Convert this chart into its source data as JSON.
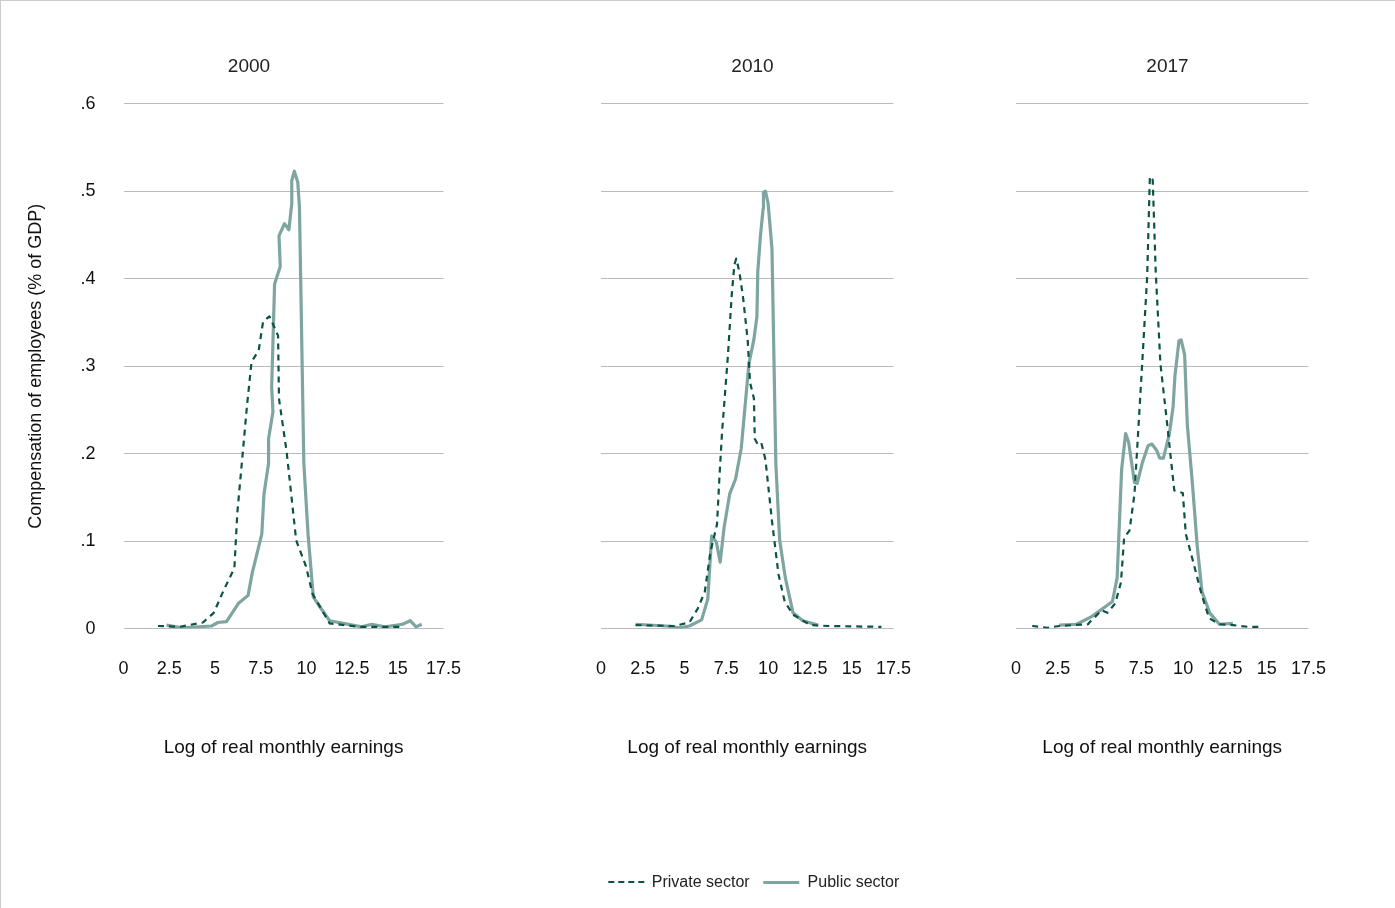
{
  "chart_data": [
    {
      "type": "line",
      "title": "2000",
      "xlabel": "Log of real monthly earnings",
      "ylabel": "Compensation of employees (% of GDP)",
      "xlim": [
        0,
        17.5
      ],
      "xticks": [
        0,
        2.5,
        5,
        7.5,
        10,
        12.5,
        15,
        17.5
      ],
      "ylim": [
        0,
        0.6
      ],
      "yticks": [
        {
          "value": 0,
          "label": "0"
        },
        {
          "value": 0.1,
          "label": ".1"
        },
        {
          "value": 0.2,
          "label": ".2"
        },
        {
          "value": 0.3,
          "label": ".3"
        },
        {
          "value": 0.4,
          "label": ".4"
        },
        {
          "value": 0.5,
          "label": ".5"
        },
        {
          "value": 0.6,
          "label": ".6"
        }
      ],
      "grid": "y",
      "marker": "none",
      "series": [
        {
          "color": "#0b5345",
          "line_style": "dashed",
          "x": [
            1.88,
            3.05,
            4.34,
            4.93,
            5.5,
            6.06,
            6.22,
            6.76,
            7.0,
            7.39,
            7.63,
            7.98,
            8.45,
            8.5,
            8.92,
            9.44,
            9.98,
            10.33,
            11.27,
            12.9,
            15.26
          ],
          "values": [
            0.003,
            0.002,
            0.007,
            0.018,
            0.045,
            0.069,
            0.132,
            0.257,
            0.305,
            0.318,
            0.351,
            0.357,
            0.335,
            0.263,
            0.202,
            0.101,
            0.071,
            0.04,
            0.006,
            0.002,
            0.002
          ]
        },
        {
          "color": "#7fa5a0",
          "line_style": "solid",
          "x": [
            2.35,
            3.17,
            4.81,
            5.16,
            5.63,
            6.29,
            6.81,
            7.04,
            7.56,
            7.68,
            7.93,
            7.93,
            8.17,
            8.1,
            8.26,
            8.57,
            8.5,
            8.8,
            9.04,
            9.2,
            9.2,
            9.34,
            9.53,
            9.62,
            9.86,
            10.09,
            10.38,
            10.8,
            11.27,
            13.03,
            13.57,
            14.3,
            15.26,
            15.68,
            16.0,
            16.31
          ],
          "values": [
            0.004,
            0.001,
            0.003,
            0.007,
            0.008,
            0.029,
            0.038,
            0.064,
            0.108,
            0.154,
            0.189,
            0.217,
            0.248,
            0.276,
            0.394,
            0.414,
            0.449,
            0.463,
            0.456,
            0.486,
            0.512,
            0.523,
            0.51,
            0.482,
            0.189,
            0.108,
            0.036,
            0.023,
            0.009,
            0.002,
            0.005,
            0.002,
            0.005,
            0.009,
            0.002,
            0.005
          ]
        }
      ]
    },
    {
      "type": "line",
      "title": "2010",
      "xlabel": "Log of real monthly earnings",
      "xlim": [
        0,
        17.5
      ],
      "xticks": [
        0,
        2.5,
        5,
        7.5,
        10,
        12.5,
        15,
        17.5
      ],
      "ylim": [
        0,
        0.6
      ],
      "yticks": [
        0,
        0.1,
        0.2,
        0.3,
        0.4,
        0.5,
        0.6
      ],
      "tick_labels": "x",
      "grid": "y",
      "marker": "none",
      "legend": "bottom",
      "series": [
        {
          "name": "Private sector",
          "color": "#0b5345",
          "line_style": "dashed",
          "x": [
            2.07,
            4.37,
            5.29,
            5.79,
            6.21,
            6.55,
            6.94,
            7.08,
            7.24,
            7.59,
            7.82,
            7.98,
            8.09,
            8.28,
            8.51,
            8.78,
            8.92,
            9.15,
            9.2,
            9.43,
            9.61,
            9.84,
            10.23,
            10.62,
            10.99,
            11.49,
            12.53,
            13.56,
            16.78
          ],
          "values": [
            0.004,
            0.003,
            0.007,
            0.023,
            0.042,
            0.088,
            0.119,
            0.171,
            0.224,
            0.311,
            0.381,
            0.416,
            0.423,
            0.408,
            0.377,
            0.329,
            0.281,
            0.263,
            0.217,
            0.209,
            0.211,
            0.193,
            0.123,
            0.062,
            0.031,
            0.016,
            0.004,
            0.003,
            0.002
          ]
        },
        {
          "name": "Public sector",
          "color": "#7fa5a0",
          "line_style": "solid",
          "x": [
            2.07,
            3.91,
            4.71,
            5.29,
            6.02,
            6.39,
            6.62,
            6.9,
            7.13,
            7.36,
            7.7,
            8.05,
            8.39,
            8.85,
            9.15,
            9.33,
            9.38,
            9.54,
            9.7,
            9.72,
            9.84,
            10.0,
            10.23,
            10.46,
            10.69,
            11.03,
            11.49,
            12.07,
            12.99
          ],
          "values": [
            0.005,
            0.003,
            0.001,
            0.003,
            0.01,
            0.034,
            0.106,
            0.099,
            0.076,
            0.115,
            0.154,
            0.171,
            0.206,
            0.303,
            0.331,
            0.357,
            0.408,
            0.449,
            0.48,
            0.499,
            0.5,
            0.486,
            0.434,
            0.189,
            0.101,
            0.058,
            0.018,
            0.009,
            0.004
          ]
        }
      ]
    },
    {
      "type": "line",
      "title": "2017",
      "xlabel": "Log of real monthly earnings",
      "xlim": [
        0,
        17.5
      ],
      "xticks": [
        0,
        2.5,
        5,
        7.5,
        10,
        12.5,
        15,
        17.5
      ],
      "ylim": [
        0,
        0.6
      ],
      "yticks": [
        0,
        0.1,
        0.2,
        0.3,
        0.4,
        0.5,
        0.6
      ],
      "tick_labels": "x",
      "grid": "y",
      "marker": "none",
      "series": [
        {
          "color": "#0b5345",
          "line_style": "dashed",
          "x": [
            0.97,
            1.89,
            2.59,
            4.32,
            4.39,
            5.13,
            5.47,
            5.94,
            6.28,
            6.47,
            6.79,
            7.09,
            7.55,
            7.85,
            8.01,
            8.18,
            8.36,
            8.64,
            9.05,
            9.47,
            9.98,
            10.16,
            10.62,
            11.09,
            11.55,
            12.17,
            12.98,
            13.9,
            14.71
          ],
          "values": [
            0.003,
            0.001,
            0.003,
            0.005,
            0.007,
            0.021,
            0.018,
            0.029,
            0.053,
            0.104,
            0.112,
            0.154,
            0.303,
            0.403,
            0.517,
            0.513,
            0.408,
            0.303,
            0.233,
            0.158,
            0.155,
            0.108,
            0.075,
            0.04,
            0.012,
            0.005,
            0.004,
            0.002,
            0.002
          ]
        },
        {
          "color": "#7fa5a0",
          "line_style": "solid",
          "x": [
            2.59,
            3.63,
            4.55,
            5.77,
            6.05,
            6.32,
            6.56,
            6.74,
            7.09,
            7.25,
            7.55,
            7.9,
            8.13,
            8.41,
            8.59,
            8.82,
            9.17,
            9.4,
            9.51,
            9.75,
            9.88,
            10.09,
            10.25,
            10.55,
            10.85,
            11.13,
            11.59,
            12.17,
            12.98
          ],
          "values": [
            0.004,
            0.005,
            0.014,
            0.031,
            0.058,
            0.182,
            0.223,
            0.213,
            0.167,
            0.166,
            0.189,
            0.209,
            0.211,
            0.204,
            0.195,
            0.195,
            0.222,
            0.254,
            0.289,
            0.329,
            0.33,
            0.313,
            0.233,
            0.167,
            0.093,
            0.042,
            0.018,
            0.005,
            0.006
          ]
        }
      ]
    }
  ]
}
